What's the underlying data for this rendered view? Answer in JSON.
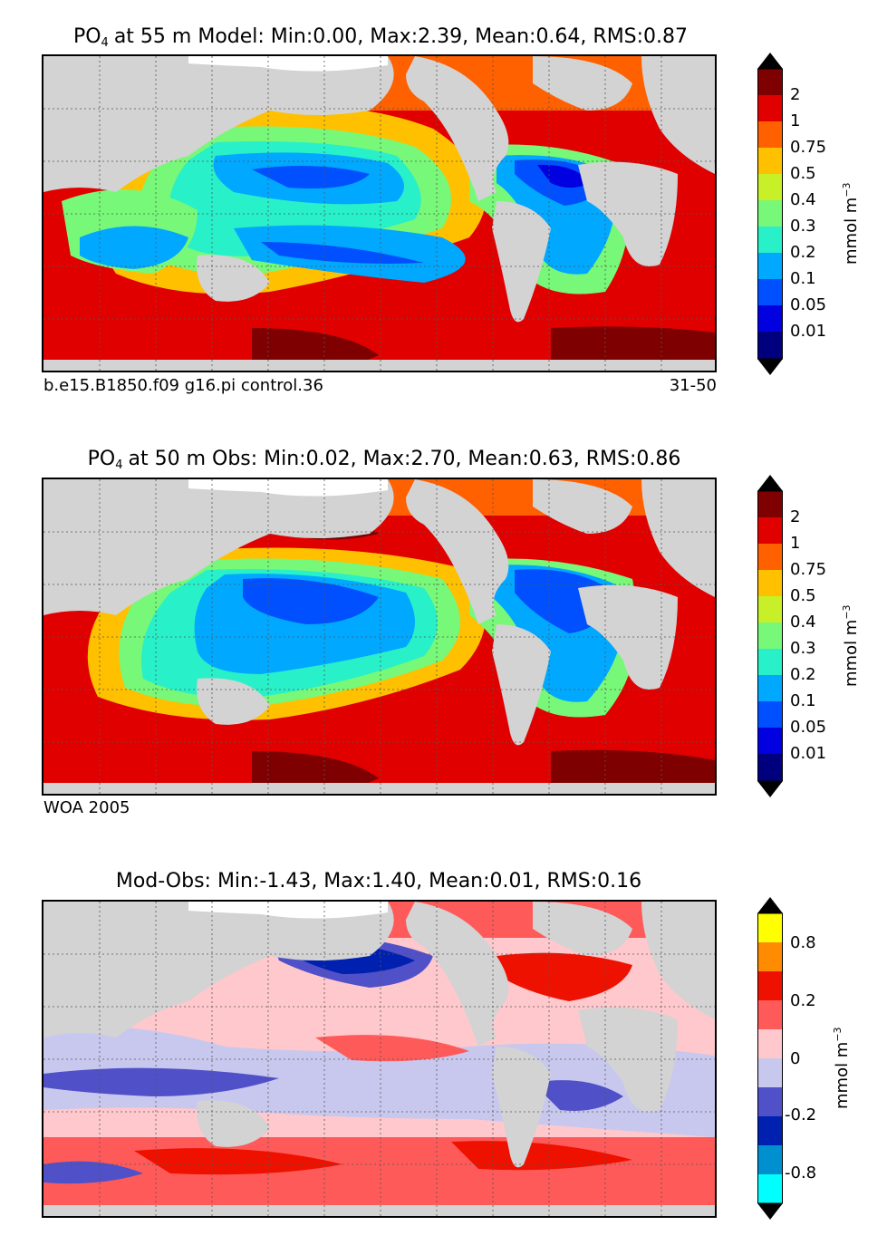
{
  "panels": [
    {
      "id": "model",
      "title_prefix": "PO",
      "title_sub": "4",
      "title_rest": "at 55 m Model: Min:0.00, Max:2.39, Mean:0.64, RMS:0.87",
      "caption_left": "b.e15.B1850.f09 g16.pi control.36",
      "caption_right": "31-50"
    },
    {
      "id": "obs",
      "title_prefix": "PO",
      "title_sub": "4",
      "title_rest": "at 50 m Obs: Min:0.02, Max:2.70, Mean:0.63, RMS:0.86",
      "caption_left": "WOA 2005",
      "caption_right": ""
    },
    {
      "id": "diff",
      "title_prefix": "",
      "title_sub": "",
      "title_rest": "Mod-Obs: Min:-1.43, Max:1.40, Mean:0.01, RMS:0.16",
      "caption_left": "",
      "caption_right": ""
    }
  ],
  "colorbar_po4": {
    "unit": "mmol m",
    "unit_exp": "−3",
    "labels": [
      "2",
      "1",
      "0.75",
      "0.5",
      "0.4",
      "0.3",
      "0.2",
      "0.1",
      "0.05",
      "0.01"
    ],
    "colors": [
      "#7f0000",
      "#e00000",
      "#ff6000",
      "#ffc000",
      "#c8f028",
      "#78f878",
      "#28f0c8",
      "#00a8ff",
      "#0050ff",
      "#0000e0",
      "#00007f"
    ]
  },
  "colorbar_diff": {
    "unit": "mmol m",
    "unit_exp": "−3",
    "labels": [
      "0.8",
      "0.2",
      "0",
      "-0.2",
      "-0.8"
    ],
    "colors": [
      "#ffff00",
      "#ff8c00",
      "#ee1100",
      "#ff5a5a",
      "#ffc8cc",
      "#c8c8ee",
      "#5050c8",
      "#0020b0",
      "#0090d0",
      "#00ffff"
    ]
  },
  "palette": {
    "land": "#d3d3d3",
    "ice": "#ffffff",
    "high": "#7f0000",
    "red": "#e00000",
    "orange": "#ff6000",
    "yellow": "#ffc000",
    "lime": "#c8f028",
    "green": "#78f878",
    "teal": "#28f0c8",
    "cyan": "#00a8ff",
    "blue": "#0050ff",
    "deep": "#0000e0",
    "pink": "#ffc8cc",
    "lavender": "#c8c8ee",
    "salmon": "#ff5a5a",
    "navy": "#0020b0"
  }
}
